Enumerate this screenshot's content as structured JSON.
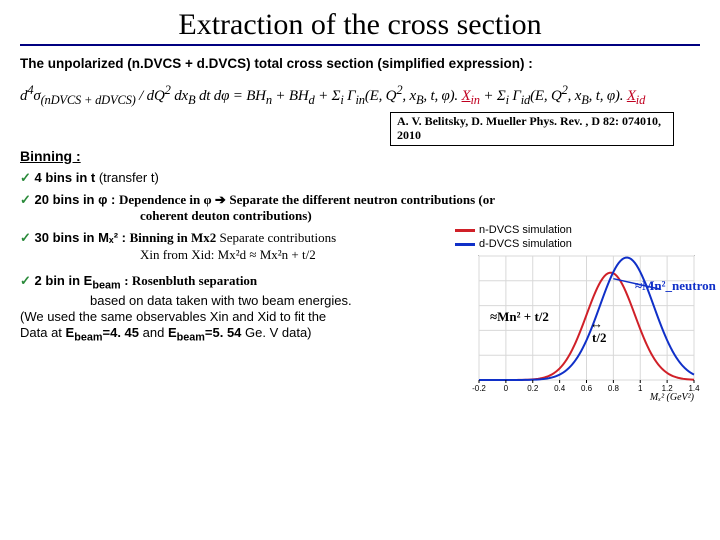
{
  "title": "Extraction of the cross section",
  "intro": "The unpolarized (n.DVCS + d.DVCS) total cross section (simplified expression) :",
  "formula_html": "d<sup>4</sup>σ<sub>(nDVCS + dDVCS)</sub> / dQ<sup>2</sup> dx<sub>B</sub> dt dφ = BH<sub>n</sub> + BH<sub>d</sub> + Σ<sub>i</sub> Γ<sub>in</sub>(E, Q<sup>2</sup>, x<sub>B</sub>, t, φ). <span style='color:#c00020;text-decoration:underline'>X<sub>in</sub></span> + Σ<sub>i</sub> Γ<sub>id</sub>(E, Q<sup>2</sup>, x<sub>B</sub>, t, φ). <span style='color:#c00020;text-decoration:underline'>X<sub>id</sub></span>",
  "reference": "A. V. Belitsky, D. Mueller  Phys. Rev. , D 82: 074010, 2010",
  "binning_label": "Binning :",
  "bullets": {
    "b1": {
      "lead": "4 bins in t",
      "rest": " (transfer t)"
    },
    "b2": {
      "lead": "20 bins in φ : ",
      "dep": "Dependence in φ ",
      "arrow": "➔",
      "line1": " Separate the different neutron contributions (or",
      "line2": "coherent deuton contributions)"
    },
    "b3": {
      "lead": "30 bins in Mₓ² : ",
      "bold": "Binning in Mx2",
      "tail": "  Separate contributions",
      "line2": "Xin  from  Xid: Mx²d ≈ Mx²n + t/2"
    },
    "b4": {
      "lead": "2 bin in E",
      "sub": "beam",
      "bold": ":  Rosenbluth separation",
      "l2": "based on data taken with two beam energies.",
      "l3": "(We used the same observables Xin and Xid to fit the",
      "l4a": "Data at ",
      "e1": "E_beam=4. 45",
      "mid": " and ",
      "e2": "E_beam=5. 54",
      "l4b": "  Ge. V data)"
    }
  },
  "legend": {
    "n": {
      "label": "n-DVCS simulation",
      "color": "#d02028"
    },
    "d": {
      "label": "d-DVCS simulation",
      "color": "#1030c8"
    }
  },
  "annot": {
    "peak": "≈Mn² + t/2",
    "shift_sym": "↔",
    "shift_lbl": "t/2",
    "mn_line": "≈Mn²_neutron"
  },
  "plot": {
    "bg": "#ffffff",
    "axis_color": "#000000",
    "grid_color": "#d8d8d8",
    "tick_color": "#000000",
    "xlim": [
      -0.2,
      1.4
    ],
    "ylim": [
      0,
      4.1
    ],
    "xticks": [
      -0.2,
      0,
      0.2,
      0.4,
      0.6,
      0.8,
      1,
      1.2,
      1.4
    ],
    "ytick_count": 5,
    "xlabel": "Mₓ² (GeV²)",
    "xlabel_fontsize": 10,
    "tick_fontsize": 8,
    "curve_width": 2,
    "series": {
      "red": {
        "color": "#d02028",
        "mean": 0.78,
        "sigma": 0.18,
        "amp": 3.55
      },
      "blue": {
        "color": "#1030c8",
        "mean": 0.9,
        "sigma": 0.2,
        "amp": 4.05
      }
    }
  }
}
